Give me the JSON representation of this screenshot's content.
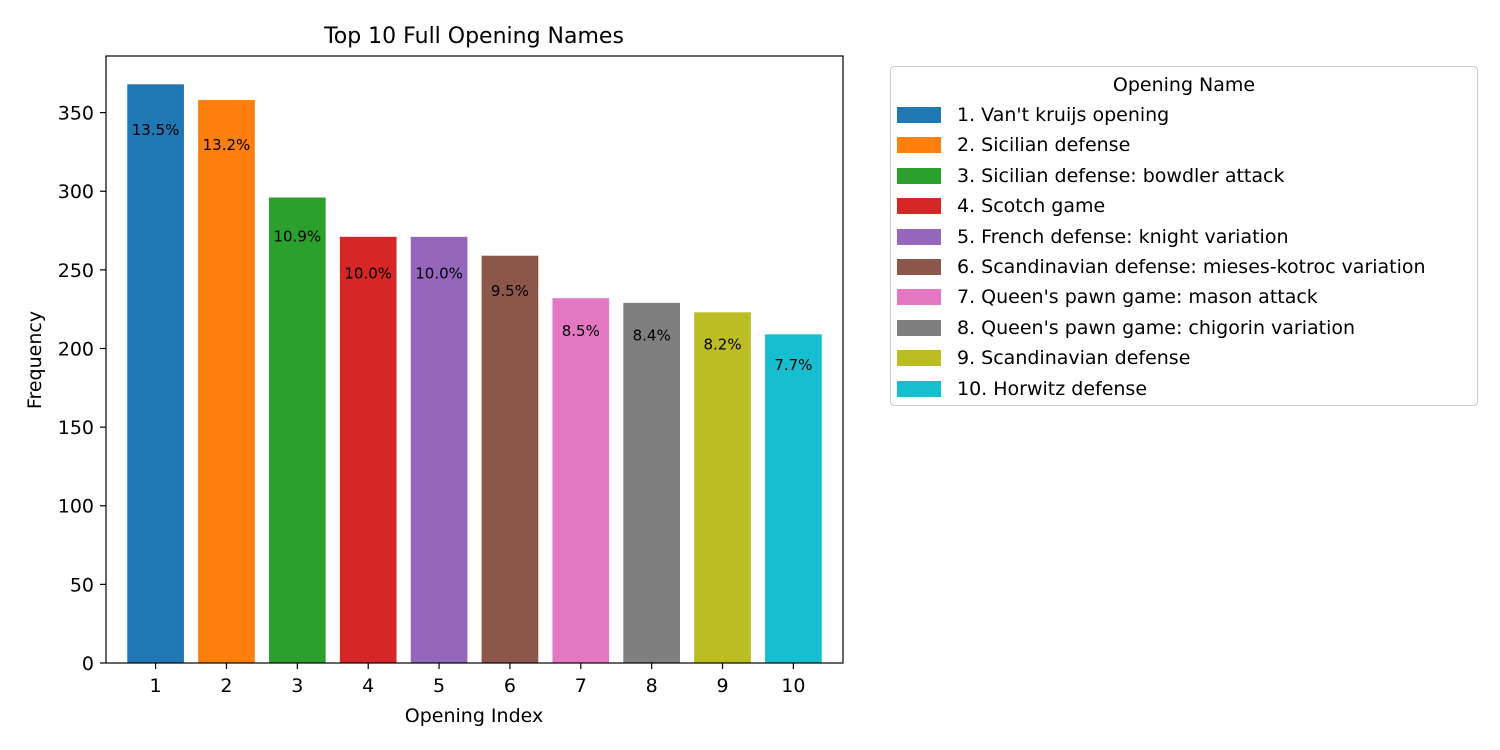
{
  "chart_data": {
    "type": "bar",
    "title": "Top 10 Full Opening Names",
    "xlabel": "Opening Index",
    "ylabel": "Frequency",
    "categories": [
      "1",
      "2",
      "3",
      "4",
      "5",
      "6",
      "7",
      "8",
      "9",
      "10"
    ],
    "values": [
      368,
      358,
      296,
      271,
      271,
      259,
      232,
      229,
      223,
      209
    ],
    "data_labels": [
      "13.5%",
      "13.2%",
      "10.9%",
      "10.0%",
      "10.0%",
      "9.5%",
      "8.5%",
      "8.4%",
      "8.2%",
      "7.7%"
    ],
    "colors": [
      "#1f77b4",
      "#ff7f0e",
      "#2ca02c",
      "#d62728",
      "#9467bd",
      "#8c564b",
      "#e377c2",
      "#7f7f7f",
      "#bcbd22",
      "#17becf"
    ],
    "ylim": [
      0,
      386
    ],
    "yticks": [
      0,
      50,
      100,
      150,
      200,
      250,
      300,
      350
    ],
    "grid": false,
    "legend": {
      "title": "Opening Name",
      "placement": "outside-right-top",
      "entries": [
        "1. Van't kruijs opening",
        "2. Sicilian defense",
        "3. Sicilian defense: bowdler attack",
        "4. Scotch game",
        "5. French defense: knight variation",
        "6. Scandinavian defense: mieses-kotroc variation",
        "7. Queen's pawn game: mason attack",
        "8. Queen's pawn game: chigorin variation",
        "9. Scandinavian defense",
        "10. Horwitz defense"
      ]
    }
  }
}
